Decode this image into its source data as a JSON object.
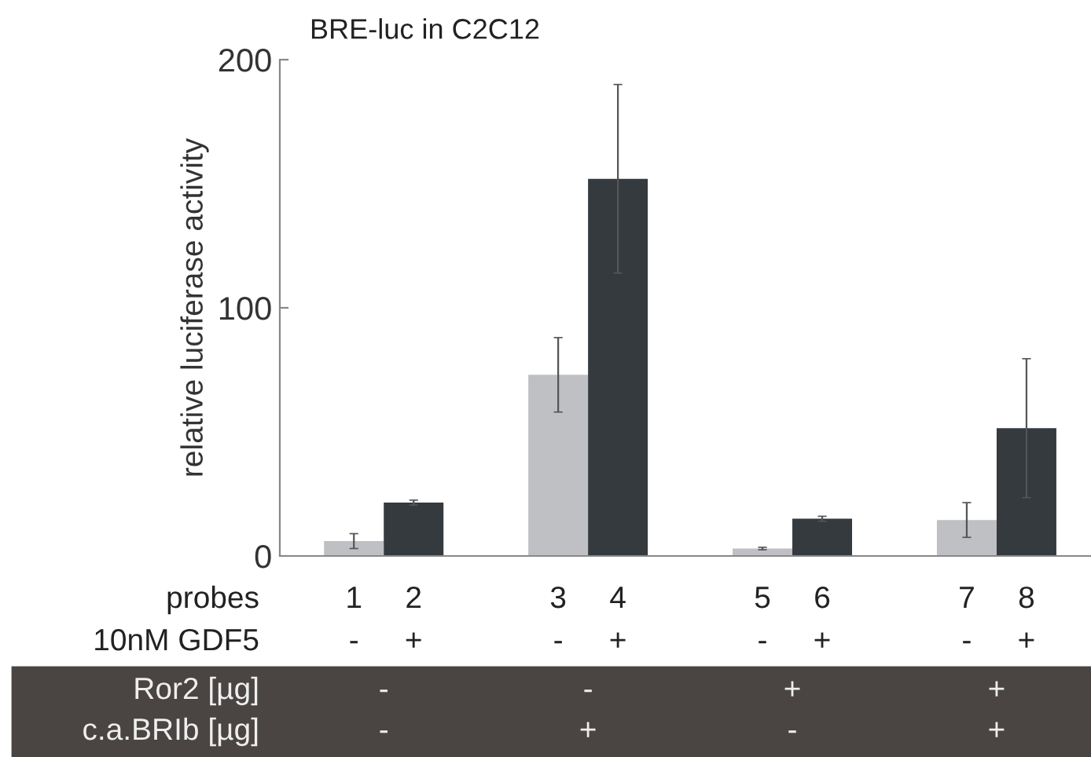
{
  "chart_data": {
    "type": "bar",
    "title": "BRE-luc in C2C12",
    "ylabel": "relative luciferase activity",
    "xlabel": "probes",
    "categories": [
      "1",
      "2",
      "3",
      "4",
      "5",
      "6",
      "7",
      "8"
    ],
    "values": [
      6,
      21.5,
      73,
      152,
      3,
      15,
      14.5,
      51.5
    ],
    "errors": [
      3,
      1,
      15,
      38,
      0.5,
      1,
      7,
      28
    ],
    "colors": [
      "#bfc0c4",
      "#343a3e",
      "#bfc0c4",
      "#343a3e",
      "#bfc0c4",
      "#343a3e",
      "#bfc0c4",
      "#343a3e"
    ],
    "ylim": [
      0,
      200
    ],
    "yticks": [
      0,
      100,
      200
    ],
    "annotations": [
      "10nM GDF5",
      "-",
      "+",
      "-",
      "+",
      "-",
      "+",
      "-",
      "+",
      "Ror2 [µg]",
      "-",
      "-",
      "+",
      "+",
      "c.a.BRIb [µg]",
      "-",
      "+",
      "-",
      "+"
    ]
  }
}
